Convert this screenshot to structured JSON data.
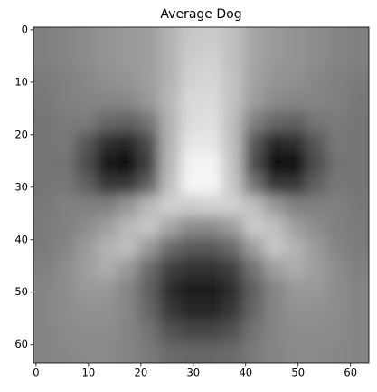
{
  "chart_data": {
    "type": "image",
    "title": "Average Dog",
    "cmap": "gray",
    "xlim": [
      -0.5,
      63.5
    ],
    "ylim": [
      63.5,
      -0.5
    ],
    "xticks": [
      0,
      10,
      20,
      30,
      40,
      50,
      60
    ],
    "yticks": [
      0,
      10,
      20,
      30,
      40,
      50,
      60
    ],
    "values": [
      [
        0.5,
        0.52,
        0.55,
        0.58,
        0.6,
        0.62,
        0.7,
        0.78,
        0.8,
        0.75,
        0.65,
        0.6,
        0.58,
        0.55,
        0.52,
        0.5
      ],
      [
        0.5,
        0.52,
        0.55,
        0.58,
        0.6,
        0.62,
        0.7,
        0.8,
        0.82,
        0.75,
        0.65,
        0.6,
        0.58,
        0.55,
        0.52,
        0.5
      ],
      [
        0.48,
        0.5,
        0.53,
        0.56,
        0.58,
        0.62,
        0.7,
        0.82,
        0.84,
        0.76,
        0.64,
        0.58,
        0.56,
        0.53,
        0.5,
        0.48
      ],
      [
        0.47,
        0.5,
        0.52,
        0.52,
        0.53,
        0.6,
        0.72,
        0.85,
        0.86,
        0.76,
        0.62,
        0.54,
        0.52,
        0.52,
        0.5,
        0.47
      ],
      [
        0.46,
        0.48,
        0.48,
        0.4,
        0.38,
        0.45,
        0.7,
        0.86,
        0.88,
        0.74,
        0.5,
        0.4,
        0.38,
        0.46,
        0.48,
        0.46
      ],
      [
        0.46,
        0.47,
        0.35,
        0.18,
        0.15,
        0.3,
        0.7,
        0.9,
        0.9,
        0.75,
        0.35,
        0.15,
        0.18,
        0.35,
        0.47,
        0.46
      ],
      [
        0.46,
        0.45,
        0.3,
        0.08,
        0.05,
        0.25,
        0.72,
        0.95,
        0.96,
        0.76,
        0.3,
        0.05,
        0.06,
        0.3,
        0.45,
        0.46
      ],
      [
        0.46,
        0.47,
        0.38,
        0.22,
        0.22,
        0.38,
        0.75,
        0.96,
        0.96,
        0.78,
        0.45,
        0.22,
        0.22,
        0.38,
        0.47,
        0.46
      ],
      [
        0.47,
        0.5,
        0.5,
        0.5,
        0.58,
        0.72,
        0.82,
        0.8,
        0.82,
        0.82,
        0.75,
        0.6,
        0.5,
        0.5,
        0.5,
        0.47
      ],
      [
        0.48,
        0.5,
        0.55,
        0.62,
        0.72,
        0.78,
        0.65,
        0.55,
        0.55,
        0.62,
        0.8,
        0.75,
        0.62,
        0.55,
        0.5,
        0.48
      ],
      [
        0.48,
        0.52,
        0.6,
        0.7,
        0.75,
        0.6,
        0.42,
        0.35,
        0.35,
        0.42,
        0.62,
        0.78,
        0.7,
        0.6,
        0.52,
        0.48
      ],
      [
        0.5,
        0.55,
        0.62,
        0.68,
        0.6,
        0.42,
        0.25,
        0.2,
        0.2,
        0.25,
        0.45,
        0.62,
        0.68,
        0.62,
        0.55,
        0.5
      ],
      [
        0.52,
        0.55,
        0.6,
        0.6,
        0.52,
        0.38,
        0.18,
        0.12,
        0.12,
        0.18,
        0.38,
        0.52,
        0.6,
        0.6,
        0.55,
        0.52
      ],
      [
        0.52,
        0.55,
        0.57,
        0.57,
        0.52,
        0.4,
        0.22,
        0.15,
        0.15,
        0.22,
        0.4,
        0.52,
        0.57,
        0.57,
        0.55,
        0.52
      ],
      [
        0.52,
        0.54,
        0.55,
        0.55,
        0.52,
        0.45,
        0.32,
        0.28,
        0.28,
        0.32,
        0.45,
        0.52,
        0.55,
        0.55,
        0.54,
        0.52
      ],
      [
        0.52,
        0.53,
        0.54,
        0.54,
        0.52,
        0.48,
        0.42,
        0.4,
        0.4,
        0.42,
        0.48,
        0.52,
        0.54,
        0.54,
        0.53,
        0.52
      ]
    ]
  }
}
